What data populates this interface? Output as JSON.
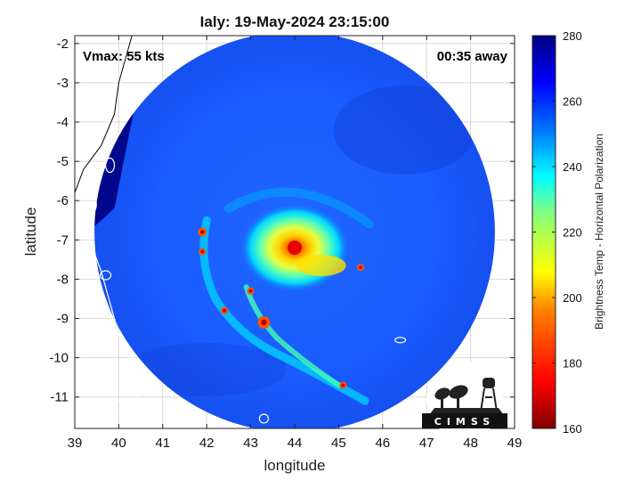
{
  "chart_data": {
    "type": "heatmap",
    "title": "Ialy: 19-May-2024 23:15:00",
    "xlabel": "longitude",
    "ylabel": "latitude",
    "xlim": [
      39,
      49
    ],
    "ylim": [
      -11.8,
      -1.8
    ],
    "xticks": [
      39,
      40,
      41,
      42,
      43,
      44,
      45,
      46,
      47,
      48,
      49
    ],
    "yticks": [
      -2,
      -3,
      -4,
      -5,
      -6,
      -7,
      -8,
      -9,
      -10,
      -11
    ],
    "grid": true,
    "annotations": {
      "vmax": "Vmax: 55 kts",
      "timing": "00:35 away"
    },
    "colorbar": {
      "label": "Brightness Temp - Horizontal Polarization",
      "range": [
        160,
        280
      ],
      "ticks": [
        160,
        180,
        200,
        220,
        240,
        260,
        280
      ],
      "colormap": "jet"
    },
    "swath": {
      "center_lon": 44.0,
      "center_lat": -6.8,
      "radius_deg": 5.0
    },
    "storm_center": {
      "lon": 44.0,
      "lat": -7.2,
      "min_tb": 170
    },
    "logo_text": "CIMSS"
  },
  "colors": {
    "background_tb": "#1a5cff",
    "land": "#000080",
    "core": "#e60000"
  }
}
